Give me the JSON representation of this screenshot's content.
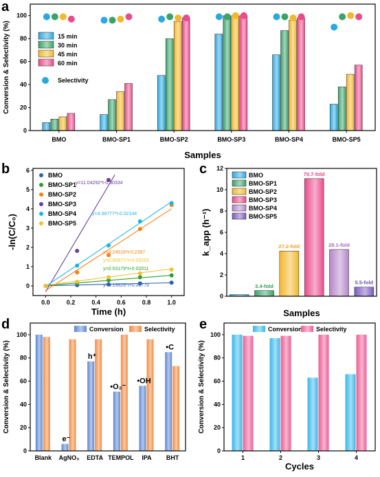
{
  "panels": {
    "a": {
      "letter": "a"
    },
    "b": {
      "letter": "b"
    },
    "c": {
      "letter": "c"
    },
    "d": {
      "letter": "d"
    },
    "e": {
      "letter": "e"
    }
  },
  "chart_data": [
    {
      "id": "a",
      "type": "bar",
      "xlabel": "Samples",
      "ylabel": "Conversion & Selectivity (%)",
      "ylim": [
        0,
        110
      ],
      "yticks": [
        0,
        20,
        40,
        60,
        80,
        100
      ],
      "categories": [
        "BMO",
        "BMO-SP1",
        "BMO-SP2",
        "BMO-SP3",
        "BMO-SP4",
        "BMO-SP5"
      ],
      "series": [
        {
          "name": "15 min",
          "color": "#2aa9e0",
          "values": [
            7,
            14,
            48,
            84,
            66,
            23
          ]
        },
        {
          "name": "30 min",
          "color": "#3aa36b",
          "values": [
            10,
            27,
            80,
            100,
            87,
            38
          ]
        },
        {
          "name": "45 min",
          "color": "#f3b72a",
          "values": [
            12,
            34,
            95,
            100,
            96,
            49
          ]
        },
        {
          "name": "60 min",
          "color": "#ec4a8c",
          "values": [
            15,
            41,
            98,
            100,
            98,
            57
          ]
        }
      ],
      "selectivity": {
        "name": "Selectivity",
        "color": "#2aa9e0",
        "values": [
          [
            99,
            99,
            99,
            97
          ],
          [
            96,
            96,
            97,
            99
          ],
          [
            97,
            99,
            98,
            98
          ],
          [
            99,
            99,
            100,
            100
          ],
          [
            99,
            99,
            98,
            99
          ],
          [
            90,
            99,
            100,
            99
          ]
        ]
      },
      "legend_position": "top-left"
    },
    {
      "id": "b",
      "type": "scatter",
      "xlabel": "Time (h)",
      "ylabel": "-ln(C/C₀)",
      "xlim": [
        -0.1,
        1.1
      ],
      "ylim": [
        -0.5,
        6.1
      ],
      "xticks": [
        "0.0",
        "0.2",
        "0.4",
        "0.6",
        "0.8",
        "1.0"
      ],
      "yticks": [
        "0",
        "1",
        "2",
        "3",
        "4",
        "5",
        "6"
      ],
      "series": [
        {
          "name": "BMO",
          "color": "#2f5fb4",
          "x": [
            0,
            0.25,
            0.5,
            0.75,
            1.0
          ],
          "y": [
            0,
            0.04,
            0.08,
            0.13,
            0.17
          ],
          "fit": "y=0.15629*t+0.00779",
          "slope": 0.15629,
          "intercept": 0.00779,
          "xmax": 1.0
        },
        {
          "name": "BMO-SP1",
          "color": "#2ca02c",
          "x": [
            0,
            0.25,
            0.5,
            0.75,
            1.0
          ],
          "y": [
            0,
            0.14,
            0.3,
            0.45,
            0.55
          ],
          "fit": "y=0.53179*t+0.02011",
          "slope": 0.53179,
          "intercept": 0.02011,
          "xmax": 1.0
        },
        {
          "name": "BMO-SP2",
          "color": "#ff7f0e",
          "x": [
            0,
            0.25,
            0.5,
            0.75,
            1.0
          ],
          "y": [
            0,
            0.7,
            1.6,
            2.95,
            4.2
          ],
          "fit": "y=4.24518*t-0.2397",
          "slope": 4.24518,
          "intercept": -0.2397,
          "xmax": 1.0
        },
        {
          "name": "BMO-SP3",
          "color": "#6a3d9a",
          "x": [
            0,
            0.25,
            0.5
          ],
          "y": [
            0,
            1.82,
            5.5
          ],
          "fit": "y=11.04292*t-0.30334",
          "slope": 11.04292,
          "intercept": -0.30334,
          "xmax": 0.55
        },
        {
          "name": "BMO-SP4",
          "color": "#1bb3e6",
          "x": [
            0,
            0.25,
            0.5,
            0.75,
            1.0
          ],
          "y": [
            0,
            1.05,
            2.1,
            3.35,
            4.3
          ],
          "fit": "y=4.38777*t-0.02144",
          "slope": 4.38777,
          "intercept": -0.02144,
          "xmax": 1.0
        },
        {
          "name": "BMO-SP5",
          "color": "#f1c232",
          "x": [
            0,
            0.25,
            0.5,
            0.75,
            1.0
          ],
          "y": [
            0,
            0.22,
            0.45,
            0.65,
            0.85
          ],
          "fit": "y=0.85871*t+0.03263",
          "slope": 0.85871,
          "intercept": 0.03263,
          "xmax": 1.0
        }
      ],
      "legend_position": "top-left"
    },
    {
      "id": "c",
      "type": "bar",
      "xlabel": "Samples",
      "ylabel": "k_app (h⁻¹)",
      "ylim": [
        0,
        12
      ],
      "yticks": [
        0,
        2,
        4,
        6,
        8,
        10,
        12
      ],
      "categories": [
        "BMO",
        "BMO-SP1",
        "BMO-SP2",
        "BMO-SP3",
        "BMO-SP4",
        "BMO-SP5"
      ],
      "values": [
        0.156,
        0.532,
        4.245,
        11.043,
        4.388,
        0.859
      ],
      "colors": [
        "#2aa9e0",
        "#3aa36b",
        "#f3b72a",
        "#ec4a8c",
        "#b586c9",
        "#7b5bbf"
      ],
      "labels": [
        "",
        "3.4-fold",
        "27.2-fold",
        "70.7-fold",
        "28.1-fold",
        "5.5-fold"
      ],
      "label_colors": [
        "",
        "#2e9b5a",
        "#e7a321",
        "#e0457f",
        "#a46cc1",
        "#6c4fb0"
      ],
      "legend_position": "top-left"
    },
    {
      "id": "d",
      "type": "bar",
      "ylabel": "Conversion & Selectivity (%)",
      "ylim": [
        0,
        110
      ],
      "yticks": [
        0,
        20,
        40,
        60,
        80,
        100
      ],
      "categories": [
        "Blank",
        "AgNO₃",
        "EDTA",
        "TEMPOL",
        "IPA",
        "BHT"
      ],
      "series": [
        {
          "name": "Conversion",
          "color": "#5b86d6",
          "values": [
            100,
            6,
            77,
            51,
            56,
            85
          ]
        },
        {
          "name": "Selectivity",
          "color": "#f28a3c",
          "values": [
            98,
            96,
            96,
            100,
            96,
            73
          ]
        }
      ],
      "annotations": [
        "",
        "e⁻",
        "h⁺",
        "•O₂⁻",
        "•OH",
        "•C"
      ],
      "legend_position": "top"
    },
    {
      "id": "e",
      "type": "bar",
      "xlabel": "Cycles",
      "ylabel": "Conversion & Selectivity (%)",
      "ylim": [
        0,
        110
      ],
      "yticks": [
        0,
        20,
        40,
        60,
        80,
        100
      ],
      "categories": [
        "1",
        "2",
        "3",
        "4"
      ],
      "series": [
        {
          "name": "Conversion",
          "color": "#36b8e8",
          "values": [
            100,
            97,
            63,
            66
          ]
        },
        {
          "name": "Selectivity",
          "color": "#ee5c95",
          "values": [
            99,
            99,
            100,
            100
          ]
        }
      ],
      "legend_position": "top"
    }
  ]
}
